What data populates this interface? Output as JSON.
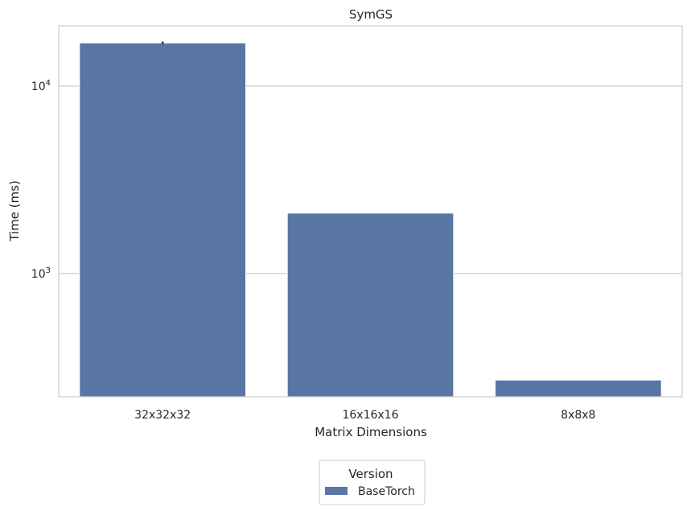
{
  "chart_data": {
    "type": "bar",
    "title": "SymGS",
    "xlabel": "Matrix Dimensions",
    "ylabel": "Time (ms)",
    "y_scale": "log",
    "ylim": [
      220,
      21000
    ],
    "y_ticks": [
      {
        "value": 1000,
        "base": "10",
        "exp": "3"
      },
      {
        "value": 10000,
        "base": "10",
        "exp": "4"
      }
    ],
    "categories": [
      "32x32x32",
      "16x16x16",
      "8x8x8"
    ],
    "series": [
      {
        "name": "BaseTorch",
        "color": "#5975a4",
        "values": [
          17000,
          2100,
          270
        ],
        "error_bars": [
          [
            16700,
            17300
          ],
          null,
          null
        ]
      }
    ],
    "grid": true,
    "legend": {
      "title": "Version",
      "placement": "bottom-center",
      "entries": [
        "BaseTorch"
      ]
    }
  }
}
